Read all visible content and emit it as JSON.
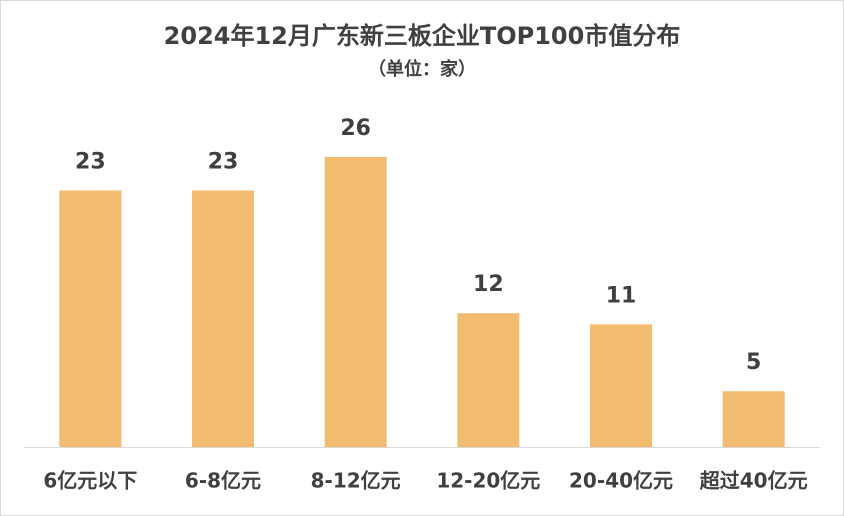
{
  "chart_data": {
    "type": "bar",
    "title": "2024年12月广东新三板企业TOP100市值分布",
    "subtitle": "（单位：家）",
    "categories": [
      "6亿元以下",
      "6-8亿元",
      "8-12亿元",
      "12-20亿元",
      "20-40亿元",
      "超过40亿元"
    ],
    "values": [
      23,
      23,
      26,
      12,
      11,
      5
    ],
    "color": "#f2bc70"
  }
}
